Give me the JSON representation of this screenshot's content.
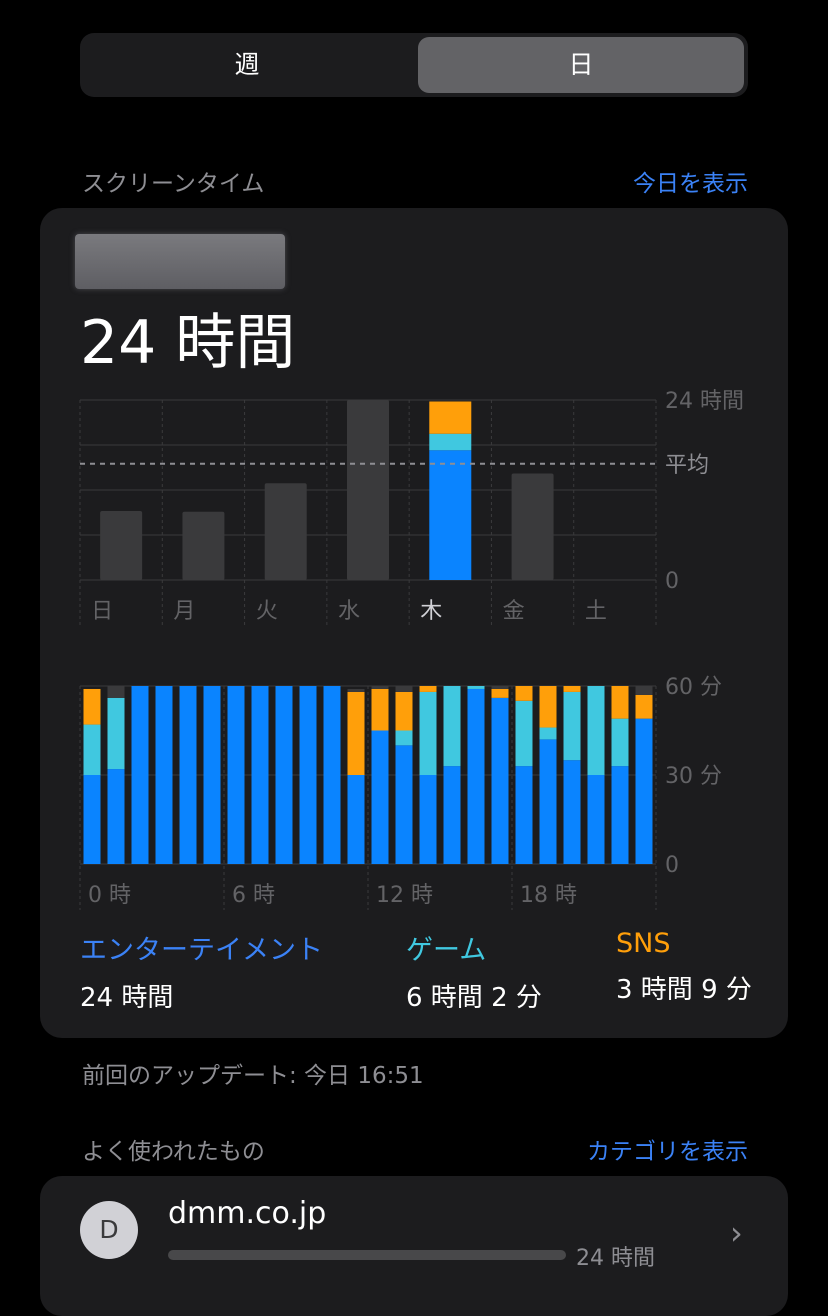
{
  "segment": {
    "week_label": "週",
    "day_label": "日",
    "selected": "日"
  },
  "screen_time": {
    "title": "スクリーンタイム",
    "link": "今日を表示"
  },
  "summary": {
    "total": "24 時間"
  },
  "chart_data": [
    {
      "type": "bar",
      "categories": [
        "日",
        "月",
        "火",
        "水",
        "木",
        "金",
        "土"
      ],
      "values": [
        9.2,
        9.1,
        12.9,
        24,
        23.8,
        14.2,
        0
      ],
      "highlight_index": 4,
      "highlight_series": [
        {
          "name": "エンターテイメント",
          "value": 17.3,
          "color": "#0a84ff"
        },
        {
          "name": "ゲーム",
          "value": 2.2,
          "color": "#40c8e0"
        },
        {
          "name": "SNS",
          "value": 4.3,
          "color": "#ff9f0a"
        }
      ],
      "ylim": [
        0,
        24
      ],
      "ytick_labels": [
        "24 時間",
        "0"
      ],
      "average": 15.5,
      "average_label": "平均",
      "colors": {
        "bar": "#3a3a3c",
        "grid": "#3a3a3c"
      }
    },
    {
      "type": "bar",
      "stacked": true,
      "x": [
        0,
        1,
        2,
        3,
        4,
        5,
        6,
        7,
        8,
        9,
        10,
        11,
        12,
        13,
        14,
        15,
        16,
        17,
        18,
        19,
        20,
        21,
        22,
        23
      ],
      "xtick_labels": [
        "0 時",
        "6 時",
        "12 時",
        "18 時"
      ],
      "ytick_labels": [
        "60 分",
        "30 分",
        "0"
      ],
      "ylim": [
        0,
        60
      ],
      "series": [
        {
          "name": "エンターテイメント",
          "color": "#0a84ff",
          "values": [
            30,
            32,
            60,
            60,
            60,
            60,
            60,
            60,
            60,
            60,
            60,
            30,
            45,
            40,
            30,
            33,
            59,
            56,
            33,
            42,
            35,
            30,
            33,
            49
          ]
        },
        {
          "name": "ゲーム",
          "color": "#40c8e0",
          "values": [
            17,
            24,
            0,
            0,
            0,
            0,
            0,
            0,
            0,
            0,
            0,
            0,
            0,
            5,
            28,
            27,
            1,
            0,
            22,
            4,
            23,
            30,
            16,
            0
          ]
        },
        {
          "name": "SNS",
          "color": "#ff9f0a",
          "values": [
            12,
            0,
            0,
            0,
            0,
            0,
            0,
            0,
            0,
            0,
            0,
            28,
            14,
            13,
            2,
            0,
            0,
            3,
            5,
            14,
            2,
            0,
            11,
            8
          ]
        },
        {
          "name": "",
          "color": "#3a3a3c",
          "values": [
            0,
            4,
            0,
            0,
            0,
            0,
            0,
            0,
            0,
            0,
            0,
            1,
            1,
            2,
            0,
            0,
            0,
            1,
            0,
            0,
            0,
            0,
            0,
            3
          ]
        }
      ]
    }
  ],
  "categories": [
    {
      "name": "エンターテイメント",
      "value": "24 時間",
      "color": "#3b82f6"
    },
    {
      "name": "ゲーム",
      "value": "6 時間 2 分",
      "color": "#40c8e0"
    },
    {
      "name": "SNS",
      "value": "3 時間 9 分",
      "color": "#ff9f0a"
    }
  ],
  "last_update": "前回のアップデート: 今日 16:51",
  "most_used": {
    "title": "よく使われたもの",
    "link": "カテゴリを表示",
    "items": [
      {
        "icon_letter": "D",
        "name": "dmm.co.jp",
        "time": "24 時間"
      }
    ]
  }
}
